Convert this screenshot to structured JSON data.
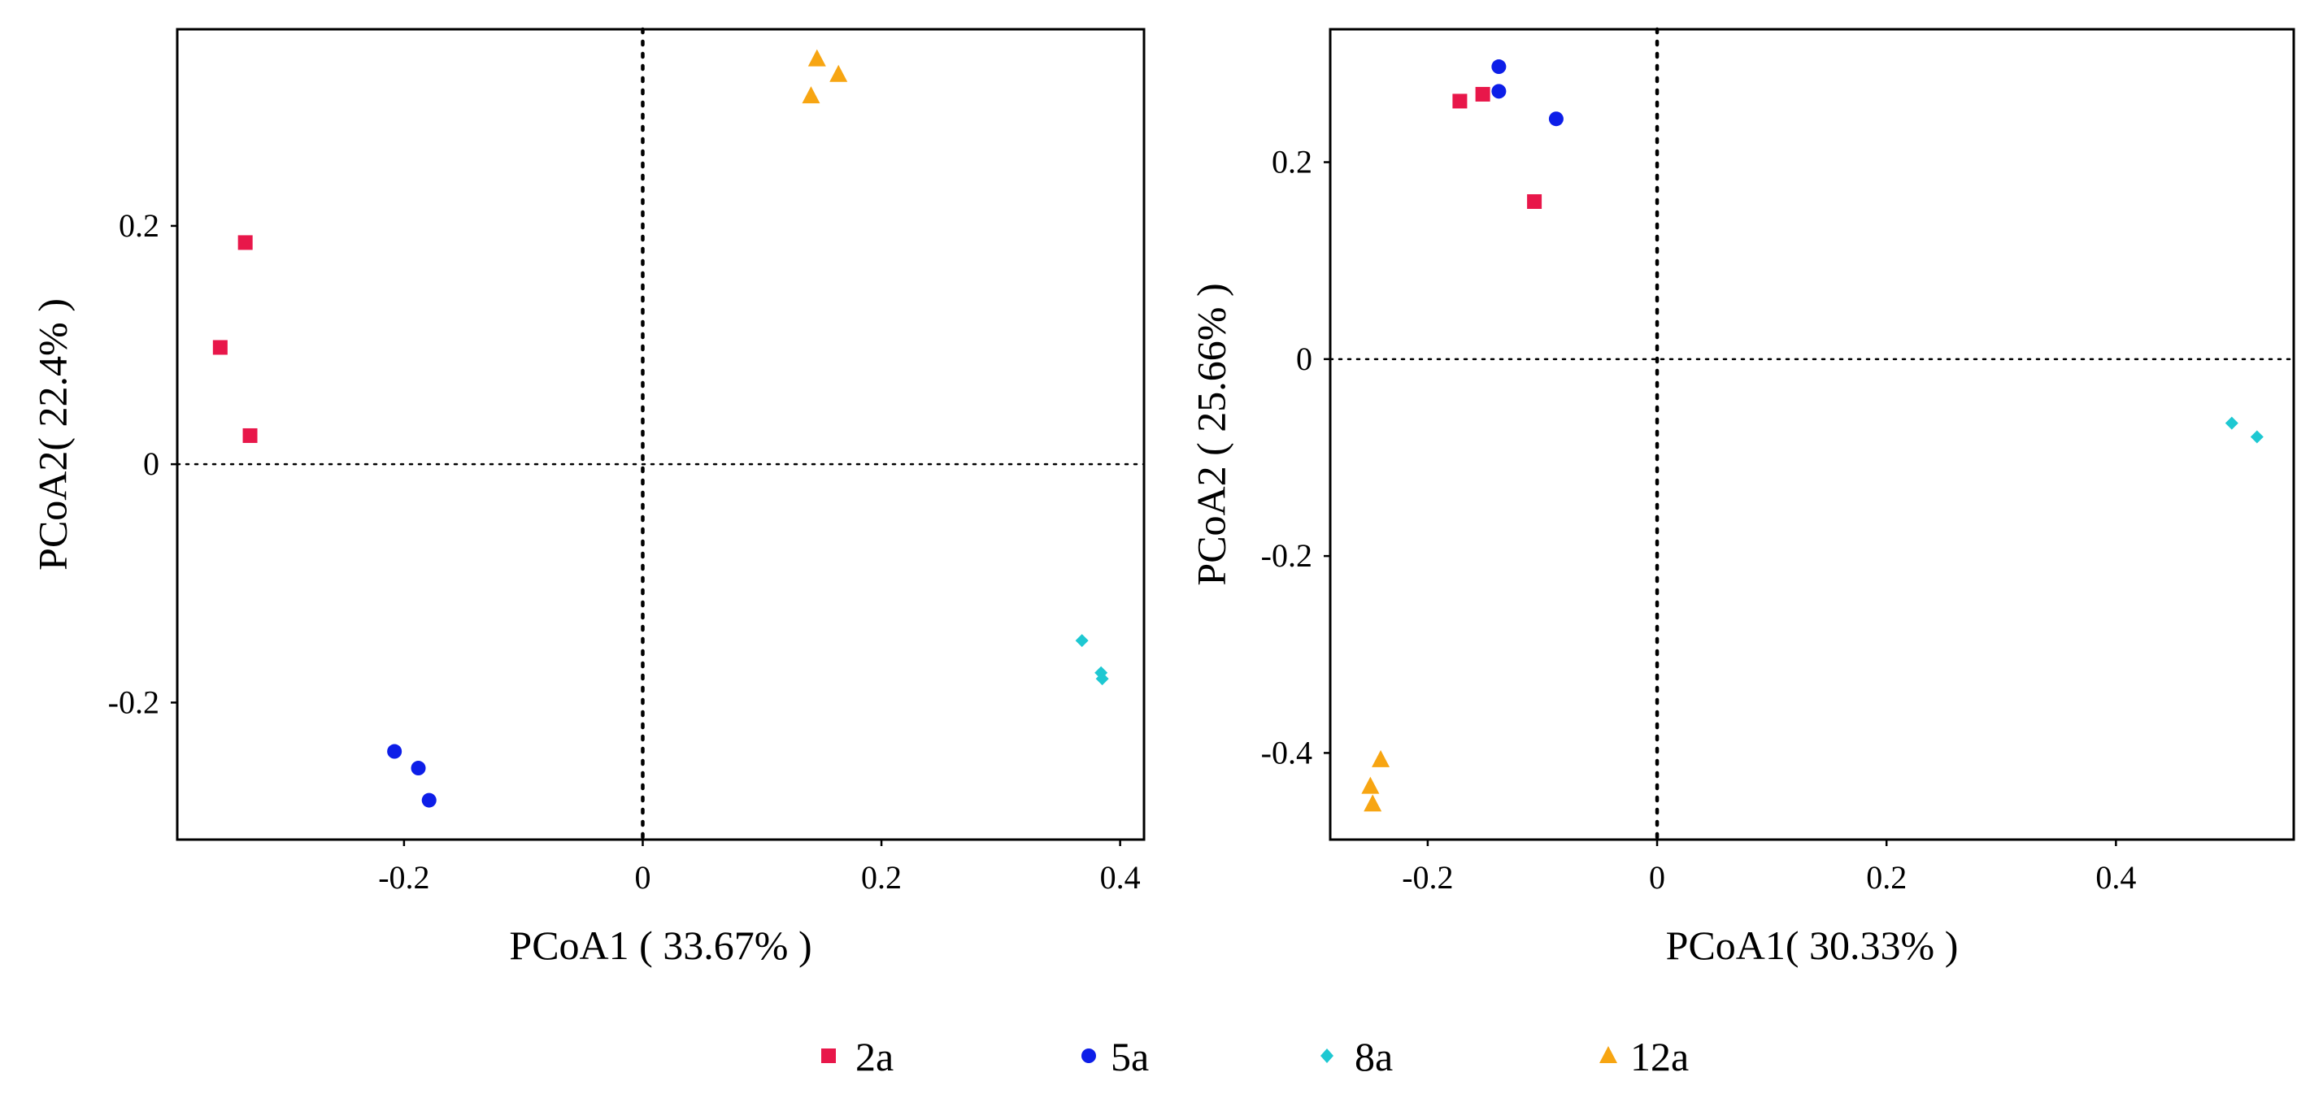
{
  "chart_data": [
    {
      "type": "scatter",
      "xlabel": "PCoA1 ( 33.67% )",
      "ylabel": "PCoA2( 22.4% )",
      "xlim": [
        -0.39,
        0.42
      ],
      "ylim": [
        -0.315,
        0.365
      ],
      "xticks": [
        -0.2,
        0,
        0.2,
        0.4
      ],
      "yticks": [
        -0.2,
        0,
        0.2
      ],
      "xtick_labels": [
        "-0.2",
        "0",
        "0.2",
        "0.4"
      ],
      "ytick_labels": [
        "-0.2",
        "0",
        "0.2"
      ],
      "grid": false,
      "reference_lines": "dotted lines at x=0 and y=0",
      "series": [
        {
          "name": "2a",
          "points": [
            [
              -0.333,
              0.186
            ],
            [
              -0.354,
              0.098
            ],
            [
              -0.329,
              0.024
            ]
          ]
        },
        {
          "name": "5a",
          "points": [
            [
              -0.208,
              -0.241
            ],
            [
              -0.188,
              -0.255
            ],
            [
              -0.179,
              -0.282
            ]
          ]
        },
        {
          "name": "8a",
          "points": [
            [
              0.368,
              -0.148
            ],
            [
              0.384,
              -0.175
            ],
            [
              0.385,
              -0.18
            ]
          ]
        },
        {
          "name": "12a",
          "points": [
            [
              0.146,
              0.34
            ],
            [
              0.164,
              0.327
            ],
            [
              0.141,
              0.309
            ]
          ]
        }
      ]
    },
    {
      "type": "scatter",
      "xlabel": "PCoA1( 30.33% )",
      "ylabel": "PCoA2 ( 25.66% )",
      "xlim": [
        -0.285,
        0.555
      ],
      "ylim": [
        -0.488,
        0.335
      ],
      "xticks": [
        -0.2,
        0,
        0.2,
        0.4
      ],
      "yticks": [
        -0.4,
        -0.2,
        0,
        0.2
      ],
      "xtick_labels": [
        "-0.2",
        "0",
        "0.2",
        "0.4"
      ],
      "ytick_labels": [
        "-0.4",
        "-0.2",
        "0",
        "0.2"
      ],
      "grid": false,
      "reference_lines": "dotted lines at x=0 and y=0",
      "series": [
        {
          "name": "2a",
          "points": [
            [
              -0.172,
              0.262
            ],
            [
              -0.152,
              0.269
            ],
            [
              -0.107,
              0.16
            ]
          ]
        },
        {
          "name": "5a",
          "points": [
            [
              -0.138,
              0.297
            ],
            [
              -0.138,
              0.272
            ],
            [
              -0.088,
              0.244
            ]
          ]
        },
        {
          "name": "8a",
          "points": [
            [
              0.501,
              -0.065
            ],
            [
              0.523,
              -0.079
            ]
          ]
        },
        {
          "name": "12a",
          "points": [
            [
              -0.241,
              -0.407
            ],
            [
              -0.25,
              -0.434
            ],
            [
              -0.248,
              -0.452
            ]
          ]
        }
      ]
    }
  ],
  "legend": {
    "placement": "bottom-center",
    "items": [
      {
        "label": "2a",
        "marker": "square",
        "color": "#e8174a"
      },
      {
        "label": "5a",
        "marker": "circle",
        "color": "#0d1ee8"
      },
      {
        "label": "8a",
        "marker": "diamond",
        "color": "#1ec8d2"
      },
      {
        "label": "12a",
        "marker": "triangle",
        "color": "#f7a512"
      }
    ]
  },
  "colors": {
    "2a": "#e8174a",
    "5a": "#0d1ee8",
    "8a": "#1ec8d2",
    "12a": "#f7a512",
    "axis": "#000000"
  }
}
